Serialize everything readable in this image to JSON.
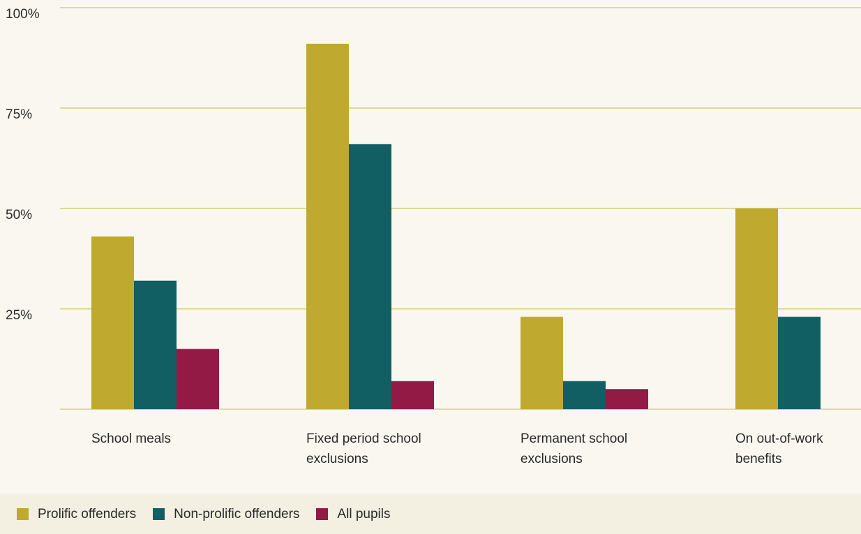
{
  "chart_data": {
    "type": "bar",
    "categories": [
      [
        "School meals"
      ],
      [
        "Fixed period school",
        "exclusions"
      ],
      [
        "Permanent school",
        "exclusions"
      ],
      [
        "On out-of-work",
        "benefits"
      ]
    ],
    "series": [
      {
        "name": "Prolific offenders",
        "color": "#bfaa2f",
        "values": [
          43,
          91,
          23,
          50
        ]
      },
      {
        "name": "Non-prolific offenders",
        "color": "#115e63",
        "values": [
          32,
          66,
          7,
          23
        ]
      },
      {
        "name": "All pupils",
        "color": "#931a45",
        "values": [
          15,
          7,
          5,
          null
        ]
      }
    ],
    "yticks": [
      "25%",
      "50%",
      "75%",
      "100%"
    ],
    "ytick_values": [
      25,
      50,
      75,
      100
    ],
    "ylim": [
      0,
      100
    ],
    "grid": true,
    "grid_color": "#c9b84a",
    "legend_position": "bottom"
  }
}
